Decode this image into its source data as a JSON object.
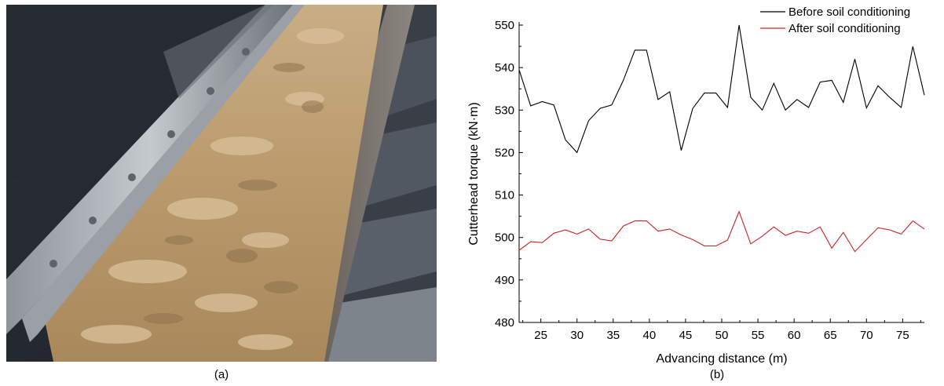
{
  "panel_a": {
    "caption": "(a)"
  },
  "panel_b": {
    "caption": "(b)"
  },
  "chart_data": {
    "type": "line",
    "title": "",
    "xlabel": "Advancing distance (m)",
    "ylabel": "Cutterhead torque (kN·m)",
    "xlim": [
      22,
      78
    ],
    "ylim": [
      480,
      550
    ],
    "xticks": [
      25,
      30,
      35,
      40,
      45,
      50,
      55,
      60,
      65,
      70,
      75
    ],
    "yticks": [
      480,
      490,
      500,
      510,
      520,
      530,
      540,
      550
    ],
    "legend_position": "top-right",
    "series": [
      {
        "name": "Before soil conditioning",
        "color": "#000000",
        "x": [
          22,
          23.6,
          25.2,
          26.8,
          28.4,
          30,
          31.6,
          33.2,
          34.8,
          36.4,
          38,
          39.6,
          41.2,
          42.8,
          44.4,
          46,
          47.6,
          49.2,
          50.8,
          52.4,
          54,
          55.6,
          57.2,
          58.8,
          60.4,
          62,
          63.6,
          65.2,
          66.8,
          68.4,
          70,
          71.6,
          73.2,
          74.8,
          76.4,
          78
        ],
        "y": [
          539.5,
          531,
          532,
          531.2,
          523,
          520,
          527.5,
          530.4,
          531.2,
          537,
          544.1,
          544.1,
          532.5,
          534.3,
          520.5,
          530.4,
          534,
          534,
          530.6,
          550,
          533,
          530,
          536.3,
          530,
          532.5,
          530.6,
          536.6,
          537,
          531.8,
          542,
          530.5,
          535.7,
          533,
          530.6,
          545,
          533.5
        ]
      },
      {
        "name": "After soil conditioning",
        "color": "#cc2222",
        "x": [
          22,
          23.6,
          25.2,
          26.8,
          28.4,
          30,
          31.6,
          33.2,
          34.8,
          36.4,
          38,
          39.6,
          41.2,
          42.8,
          44.4,
          46,
          47.6,
          49.2,
          50.8,
          52.4,
          54,
          55.6,
          57.2,
          58.8,
          60.4,
          62,
          63.6,
          65.2,
          66.8,
          68.4,
          70,
          71.6,
          73.2,
          74.8,
          76.4,
          78
        ],
        "y": [
          497,
          499,
          498.8,
          501,
          501.8,
          500.8,
          502,
          499.6,
          499.2,
          502.7,
          503.9,
          503.9,
          501.5,
          502,
          500.6,
          499.5,
          498,
          498,
          499.4,
          506.1,
          498.5,
          500.3,
          502.5,
          500.5,
          501.5,
          501,
          502.5,
          497.5,
          501.2,
          496.7,
          499.5,
          502.3,
          501.8,
          500.8,
          503.9,
          502
        ]
      }
    ]
  }
}
